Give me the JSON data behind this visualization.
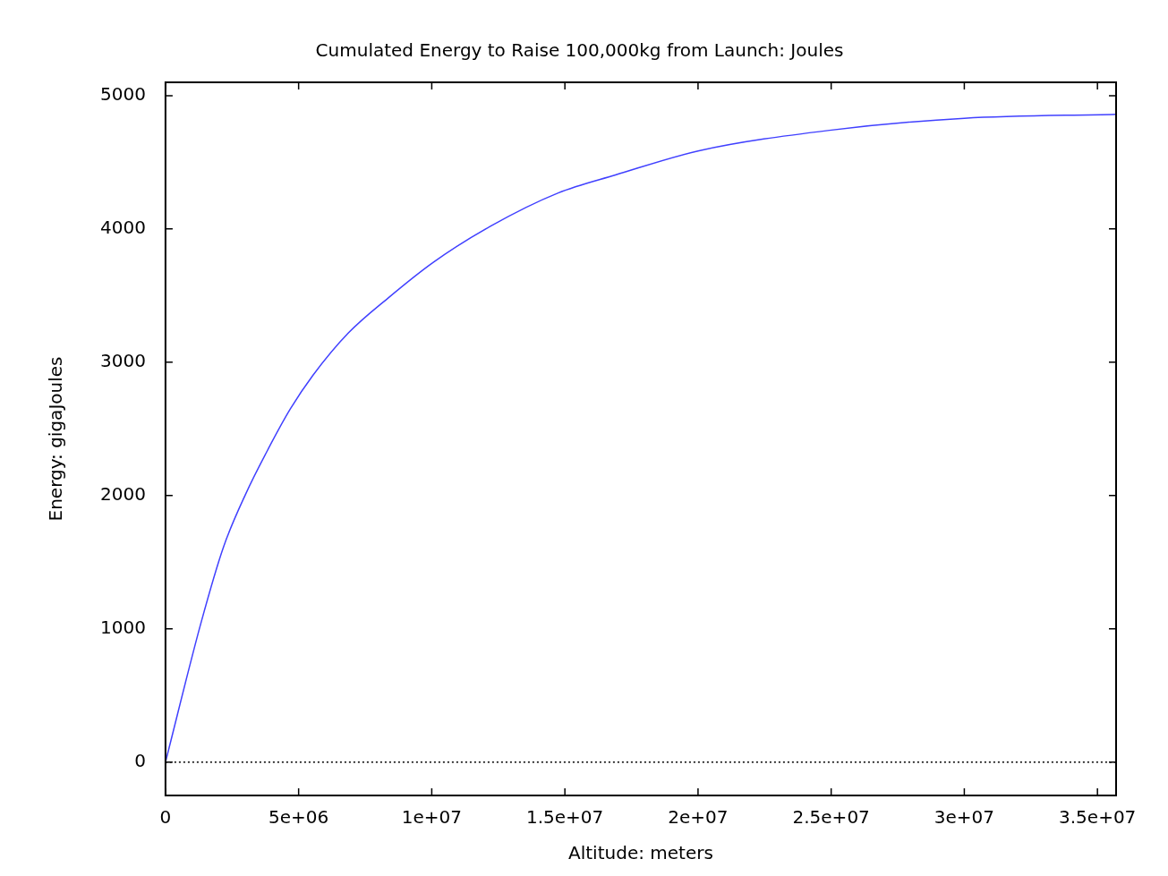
{
  "chart_data": {
    "type": "line",
    "title": "Cumulated Energy to Raise 100,000kg from Launch: Joules",
    "xlabel": "Altitude: meters",
    "ylabel": "Energy: gigaJoules",
    "x": [
      0,
      1340000.0,
      2180000.0,
      3020000.0,
      3860000.0,
      4690000.0,
      5530000.0,
      6870000.0,
      8380000.0,
      10060000.0,
      12200000.0,
      14750000.0,
      16900000.0,
      20000000.0,
      24940000.0,
      30000000.0,
      35700000.0
    ],
    "series": [
      {
        "color": "#4040ff",
        "values": [
          0,
          1050,
          1615,
          2015,
          2350,
          2650,
          2900,
          3220,
          3485,
          3750,
          4020,
          4270,
          4405,
          4585,
          4740,
          4830,
          4860
        ]
      }
    ],
    "xlim": [
      0,
      35700000.0
    ],
    "ylim": [
      -250,
      5100
    ],
    "xticks": [
      0,
      {
        "value": 5000000.0,
        "label": "5e+06"
      },
      {
        "value": 10000000.0,
        "label": "1e+07"
      },
      {
        "value": 15000000.0,
        "label": "1.5e+07"
      },
      {
        "value": 20000000.0,
        "label": "2e+07"
      },
      {
        "value": 25000000.0,
        "label": "2.5e+07"
      },
      {
        "value": 30000000.0,
        "label": "3e+07"
      },
      {
        "value": 35000000.0,
        "label": "3.5e+07"
      }
    ],
    "yticks": [
      0,
      1000,
      2000,
      3000,
      4000,
      5000
    ],
    "ref_lines": [
      {
        "axis": "y",
        "value": 0,
        "line_style": "dotted",
        "color": "#000000"
      }
    ],
    "grid": false,
    "legend": false,
    "marker": "none",
    "line_style": "solid"
  }
}
